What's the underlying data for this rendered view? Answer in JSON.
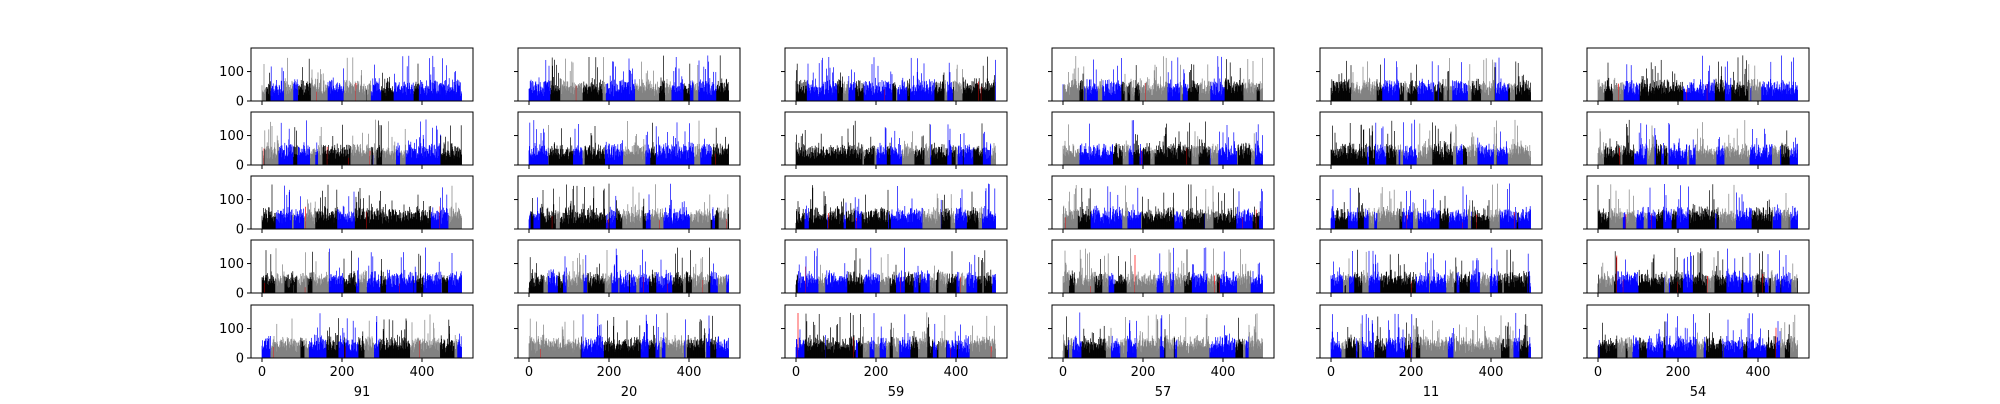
{
  "chart_data": {
    "type": "bar",
    "layout": {
      "rows": 5,
      "cols": 6,
      "sharex": true,
      "sharey": true
    },
    "x_range": [
      0,
      500
    ],
    "y_range": [
      0,
      180
    ],
    "xticks": [
      0,
      200,
      400
    ],
    "yticks": [
      0,
      100
    ],
    "column_labels": [
      "91",
      "20",
      "59",
      "57",
      "11",
      "54"
    ],
    "series_colors": [
      "#000000",
      "#0000ff",
      "#808080",
      "#ff0000"
    ],
    "bars_per_panel": 500,
    "value_range": [
      0,
      155
    ]
  }
}
